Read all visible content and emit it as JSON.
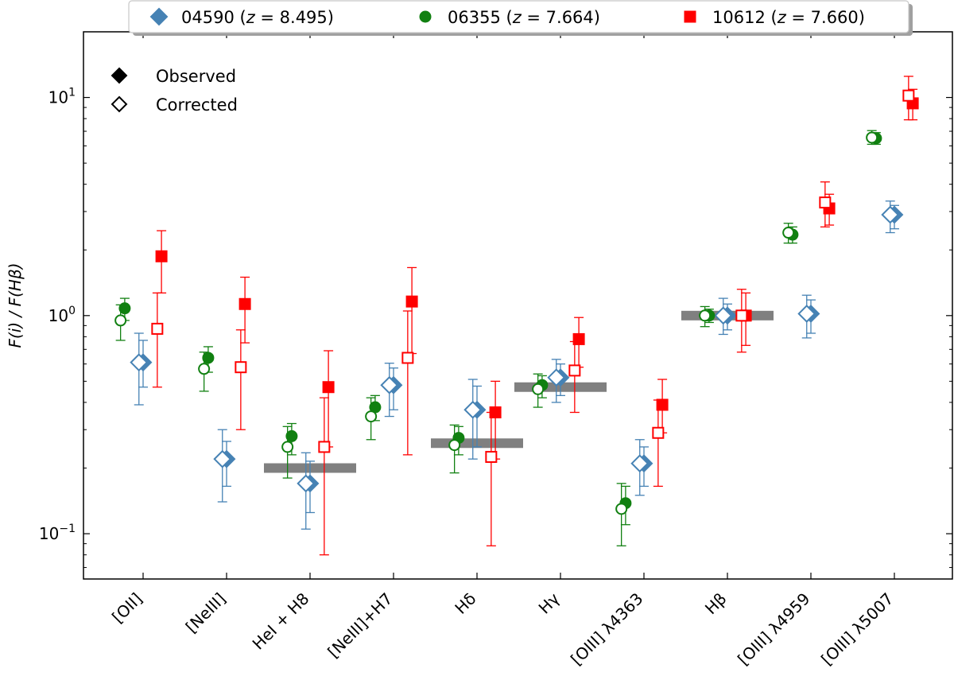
{
  "chart_data": {
    "type": "scatter",
    "ylabel": "F(i) / F(Hβ)",
    "yscale": "log",
    "ylim": [
      0.062,
      20
    ],
    "y_ticks": [
      {
        "value": 0.1,
        "base": "10",
        "exp": "−1"
      },
      {
        "value": 1,
        "base": "10",
        "exp": "0"
      },
      {
        "value": 10,
        "base": "10",
        "exp": "1"
      }
    ],
    "categories": [
      "[OII]",
      "[NeIII]",
      "HeI + H8",
      "[NeIII]+H7",
      "Hδ",
      "Hγ",
      "[OIII] λ4363",
      "Hβ",
      "[OIII] λ4959",
      "[OIII] λ5007"
    ],
    "legend": {
      "placement": "top-center",
      "entries": [
        {
          "series": "04590",
          "label": "04590 (",
          "z": "z",
          "eq": " = 8.495)"
        },
        {
          "series": "06355",
          "label": "06355 (",
          "z": "z",
          "eq": " = 7.664)"
        },
        {
          "series": "10612",
          "label": "10612 (",
          "z": "z",
          "eq": " = 7.660)"
        }
      ]
    },
    "fill_legend": {
      "placement": "top-left",
      "observed_label": "Observed",
      "corrected_label": "Corrected"
    },
    "theory_bands": [
      {
        "category": "HeI + H8",
        "value": 0.2
      },
      {
        "category": "Hδ",
        "value": 0.26
      },
      {
        "category": "Hγ",
        "value": 0.47
      },
      {
        "category": "Hβ",
        "value": 1.0
      }
    ],
    "series": [
      {
        "name": "04590",
        "z": 8.495,
        "marker": "diamond",
        "color": "#4682B4",
        "points": [
          {
            "category": "[OII]",
            "offset": 0.0,
            "y": 0.61,
            "lo": 0.47,
            "hi": 0.77,
            "filled": true
          },
          {
            "category": "[OII]",
            "offset": -0.05,
            "y": 0.61,
            "lo": 0.39,
            "hi": 0.83,
            "filled": false
          },
          {
            "category": "[NeIII]",
            "offset": 0.0,
            "y": 0.22,
            "lo": 0.165,
            "hi": 0.265,
            "filled": true
          },
          {
            "category": "[NeIII]",
            "offset": -0.05,
            "y": 0.22,
            "lo": 0.14,
            "hi": 0.3,
            "filled": false
          },
          {
            "category": "HeI + H8",
            "offset": 0.0,
            "y": 0.17,
            "lo": 0.125,
            "hi": 0.215,
            "filled": true
          },
          {
            "category": "HeI + H8",
            "offset": -0.05,
            "y": 0.17,
            "lo": 0.105,
            "hi": 0.235,
            "filled": false
          },
          {
            "category": "[NeIII]+H7",
            "offset": 0.0,
            "y": 0.48,
            "lo": 0.37,
            "hi": 0.575,
            "filled": true
          },
          {
            "category": "[NeIII]+H7",
            "offset": -0.05,
            "y": 0.48,
            "lo": 0.345,
            "hi": 0.605,
            "filled": false
          },
          {
            "category": "Hδ",
            "offset": 0.0,
            "y": 0.37,
            "lo": 0.25,
            "hi": 0.475,
            "filled": true
          },
          {
            "category": "Hδ",
            "offset": -0.05,
            "y": 0.37,
            "lo": 0.22,
            "hi": 0.51,
            "filled": false
          },
          {
            "category": "Hγ",
            "offset": 0.0,
            "y": 0.52,
            "lo": 0.43,
            "hi": 0.6,
            "filled": true
          },
          {
            "category": "Hγ",
            "offset": -0.05,
            "y": 0.52,
            "lo": 0.4,
            "hi": 0.63,
            "filled": false
          },
          {
            "category": "[OIII] λ4363",
            "offset": 0.0,
            "y": 0.21,
            "lo": 0.165,
            "hi": 0.25,
            "filled": true
          },
          {
            "category": "[OIII] λ4363",
            "offset": -0.05,
            "y": 0.21,
            "lo": 0.15,
            "hi": 0.27,
            "filled": false
          },
          {
            "category": "Hβ",
            "offset": 0.0,
            "y": 1.0,
            "lo": 0.86,
            "hi": 1.13,
            "filled": true
          },
          {
            "category": "Hβ",
            "offset": -0.05,
            "y": 1.0,
            "lo": 0.82,
            "hi": 1.2,
            "filled": false
          },
          {
            "category": "[OIII] λ4959",
            "offset": 0.0,
            "y": 1.02,
            "lo": 0.83,
            "hi": 1.18,
            "filled": true
          },
          {
            "category": "[OIII] λ4959",
            "offset": -0.05,
            "y": 1.02,
            "lo": 0.79,
            "hi": 1.24,
            "filled": false
          },
          {
            "category": "[OIII] λ5007",
            "offset": 0.0,
            "y": 2.9,
            "lo": 2.5,
            "hi": 3.2,
            "filled": true
          },
          {
            "category": "[OIII] λ5007",
            "offset": -0.05,
            "y": 2.9,
            "lo": 2.4,
            "hi": 3.35,
            "filled": false
          }
        ]
      },
      {
        "name": "06355",
        "z": 7.664,
        "marker": "circle",
        "color": "#118011",
        "points": [
          {
            "category": "[OII]",
            "offset": -0.22,
            "y": 1.08,
            "lo": 0.95,
            "hi": 1.2,
            "filled": true
          },
          {
            "category": "[OII]",
            "offset": -0.27,
            "y": 0.95,
            "lo": 0.77,
            "hi": 1.12,
            "filled": false
          },
          {
            "category": "[NeIII]",
            "offset": -0.22,
            "y": 0.64,
            "lo": 0.55,
            "hi": 0.72,
            "filled": true
          },
          {
            "category": "[NeIII]",
            "offset": -0.27,
            "y": 0.57,
            "lo": 0.45,
            "hi": 0.68,
            "filled": false
          },
          {
            "category": "HeI + H8",
            "offset": -0.22,
            "y": 0.28,
            "lo": 0.23,
            "hi": 0.32,
            "filled": true
          },
          {
            "category": "HeI + H8",
            "offset": -0.27,
            "y": 0.25,
            "lo": 0.18,
            "hi": 0.31,
            "filled": false
          },
          {
            "category": "[NeIII]+H7",
            "offset": -0.22,
            "y": 0.38,
            "lo": 0.33,
            "hi": 0.43,
            "filled": true
          },
          {
            "category": "[NeIII]+H7",
            "offset": -0.27,
            "y": 0.345,
            "lo": 0.27,
            "hi": 0.42,
            "filled": false
          },
          {
            "category": "Hδ",
            "offset": -0.22,
            "y": 0.275,
            "lo": 0.23,
            "hi": 0.31,
            "filled": true
          },
          {
            "category": "Hδ",
            "offset": -0.27,
            "y": 0.255,
            "lo": 0.19,
            "hi": 0.315,
            "filled": false
          },
          {
            "category": "Hγ",
            "offset": -0.22,
            "y": 0.48,
            "lo": 0.42,
            "hi": 0.53,
            "filled": true
          },
          {
            "category": "Hγ",
            "offset": -0.27,
            "y": 0.46,
            "lo": 0.38,
            "hi": 0.54,
            "filled": false
          },
          {
            "category": "[OIII] λ4363",
            "offset": -0.22,
            "y": 0.138,
            "lo": 0.11,
            "hi": 0.165,
            "filled": true
          },
          {
            "category": "[OIII] λ4363",
            "offset": -0.27,
            "y": 0.13,
            "lo": 0.088,
            "hi": 0.17,
            "filled": false
          },
          {
            "category": "Hβ",
            "offset": -0.22,
            "y": 1.0,
            "lo": 0.93,
            "hi": 1.07,
            "filled": true
          },
          {
            "category": "Hβ",
            "offset": -0.27,
            "y": 1.0,
            "lo": 0.89,
            "hi": 1.1,
            "filled": false
          },
          {
            "category": "[OIII] λ4959",
            "offset": -0.22,
            "y": 2.35,
            "lo": 2.15,
            "hi": 2.55,
            "filled": true
          },
          {
            "category": "[OIII] λ4959",
            "offset": -0.27,
            "y": 2.4,
            "lo": 2.15,
            "hi": 2.65,
            "filled": false
          },
          {
            "category": "[OIII] λ5007",
            "offset": -0.22,
            "y": 6.5,
            "lo": 6.1,
            "hi": 6.9,
            "filled": true
          },
          {
            "category": "[OIII] λ5007",
            "offset": -0.27,
            "y": 6.55,
            "lo": 6.1,
            "hi": 7.05,
            "filled": false
          }
        ]
      },
      {
        "name": "10612",
        "z": 7.66,
        "marker": "square",
        "color": "#ff0000",
        "points": [
          {
            "category": "[OII]",
            "offset": 0.22,
            "y": 1.87,
            "lo": 1.27,
            "hi": 2.45,
            "filled": true
          },
          {
            "category": "[OII]",
            "offset": 0.17,
            "y": 0.87,
            "lo": 0.47,
            "hi": 1.27,
            "filled": false
          },
          {
            "category": "[NeIII]",
            "offset": 0.22,
            "y": 1.13,
            "lo": 0.75,
            "hi": 1.5,
            "filled": true
          },
          {
            "category": "[NeIII]",
            "offset": 0.17,
            "y": 0.58,
            "lo": 0.3,
            "hi": 0.86,
            "filled": false
          },
          {
            "category": "HeI + H8",
            "offset": 0.22,
            "y": 0.47,
            "lo": 0.25,
            "hi": 0.69,
            "filled": true
          },
          {
            "category": "HeI + H8",
            "offset": 0.17,
            "y": 0.25,
            "lo": 0.08,
            "hi": 0.42,
            "filled": false
          },
          {
            "category": "[NeIII]+H7",
            "offset": 0.22,
            "y": 1.16,
            "lo": 0.67,
            "hi": 1.66,
            "filled": true
          },
          {
            "category": "[NeIII]+H7",
            "offset": 0.17,
            "y": 0.64,
            "lo": 0.23,
            "hi": 1.05,
            "filled": false
          },
          {
            "category": "Hδ",
            "offset": 0.22,
            "y": 0.36,
            "lo": 0.22,
            "hi": 0.5,
            "filled": true
          },
          {
            "category": "Hδ",
            "offset": 0.17,
            "y": 0.225,
            "lo": 0.088,
            "hi": 0.36,
            "filled": false
          },
          {
            "category": "Hγ",
            "offset": 0.22,
            "y": 0.78,
            "lo": 0.58,
            "hi": 0.98,
            "filled": true
          },
          {
            "category": "Hγ",
            "offset": 0.17,
            "y": 0.56,
            "lo": 0.36,
            "hi": 0.76,
            "filled": false
          },
          {
            "category": "[OIII] λ4363",
            "offset": 0.22,
            "y": 0.39,
            "lo": 0.29,
            "hi": 0.51,
            "filled": true
          },
          {
            "category": "[OIII] λ4363",
            "offset": 0.17,
            "y": 0.29,
            "lo": 0.165,
            "hi": 0.41,
            "filled": false
          },
          {
            "category": "Hβ",
            "offset": 0.22,
            "y": 1.0,
            "lo": 0.73,
            "hi": 1.27,
            "filled": true
          },
          {
            "category": "Hβ",
            "offset": 0.17,
            "y": 1.0,
            "lo": 0.68,
            "hi": 1.32,
            "filled": false
          },
          {
            "category": "[OIII] λ4959",
            "offset": 0.22,
            "y": 3.1,
            "lo": 2.6,
            "hi": 3.6,
            "filled": true
          },
          {
            "category": "[OIII] λ4959",
            "offset": 0.17,
            "y": 3.3,
            "lo": 2.55,
            "hi": 4.1,
            "filled": false
          },
          {
            "category": "[OIII] λ5007",
            "offset": 0.22,
            "y": 9.4,
            "lo": 7.9,
            "hi": 10.9,
            "filled": true
          },
          {
            "category": "[OIII] λ5007",
            "offset": 0.17,
            "y": 10.2,
            "lo": 7.9,
            "hi": 12.5,
            "filled": false
          }
        ]
      }
    ]
  }
}
